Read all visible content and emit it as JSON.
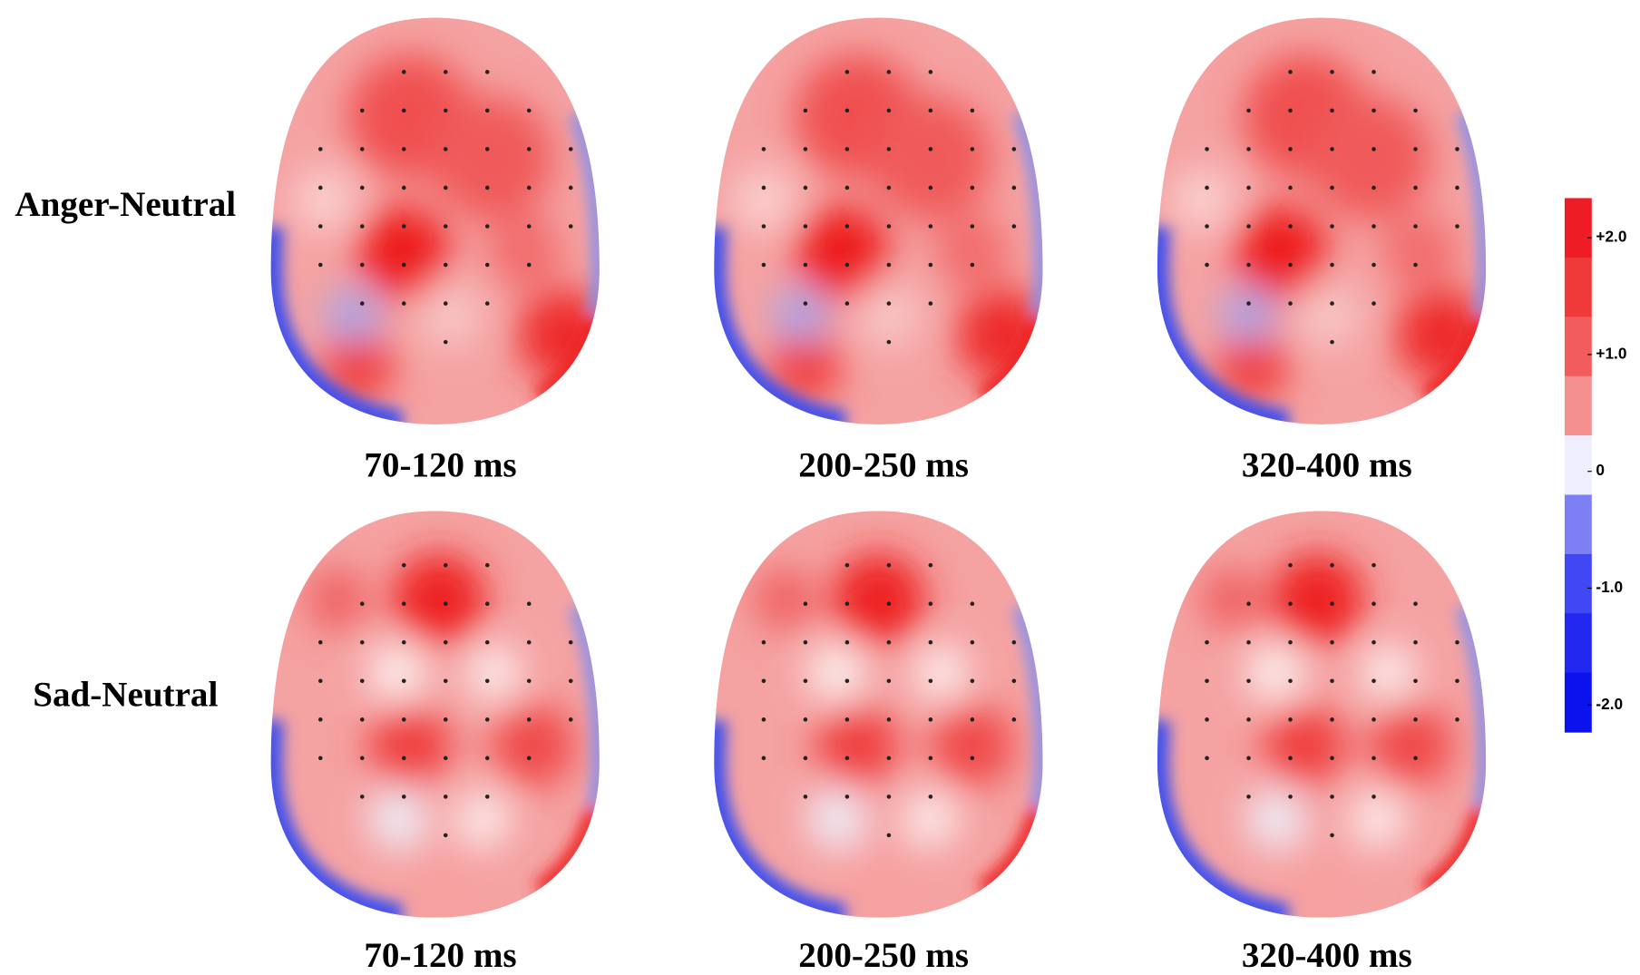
{
  "rows": [
    {
      "label": "Anger-Neutral",
      "panels": [
        "70-120 ms",
        "200-250 ms",
        "320-400 ms"
      ]
    },
    {
      "label": "Sad-Neutral",
      "panels": [
        "70-120 ms",
        "200-250 ms",
        "320-400 ms"
      ]
    }
  ],
  "colorbar": {
    "ticks": [
      {
        "value": 2,
        "label": "+2.0"
      },
      {
        "value": 1,
        "label": "+1.0"
      },
      0,
      {
        "value": -1,
        "label": "-1.0"
      },
      {
        "value": -2,
        "label": "-2.0"
      }
    ]
  }
}
